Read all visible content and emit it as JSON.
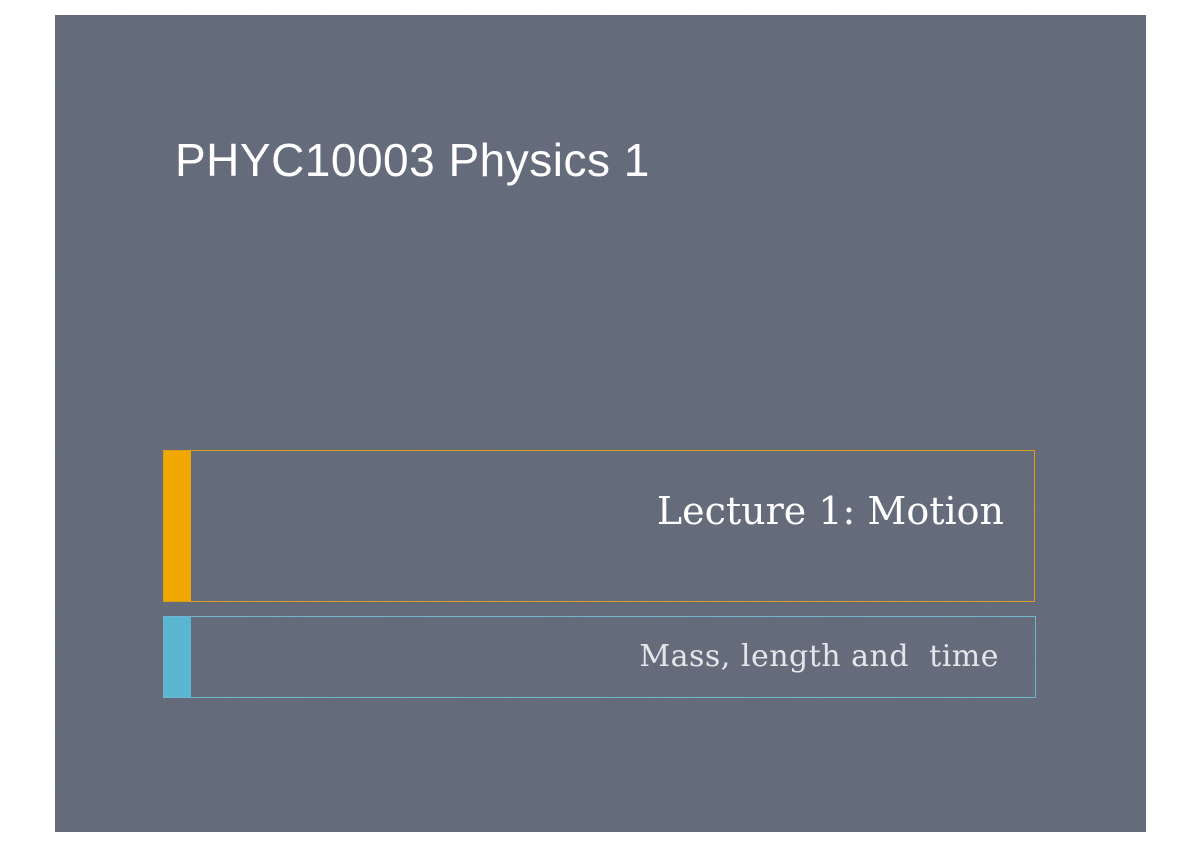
{
  "slide": {
    "title": "PHYC10003 Physics 1",
    "lecture_title": "Lecture 1: Motion",
    "subtitle": "Mass, length and  time"
  },
  "colors": {
    "background": "#646b7a",
    "title_accent": "#f0a800",
    "subtitle_accent": "#5ab6d1"
  }
}
